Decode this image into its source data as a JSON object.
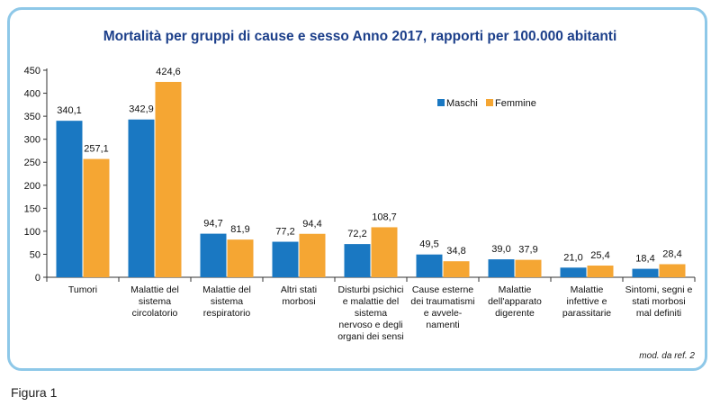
{
  "chart_data": {
    "type": "bar",
    "title": "Mortalità per gruppi di cause e sesso Anno 2017, rapporti per 100.000 abitanti",
    "xlabel": "",
    "ylabel": "",
    "ylim": [
      0,
      450
    ],
    "yticks": [
      0,
      50,
      100,
      150,
      200,
      250,
      300,
      350,
      400,
      450
    ],
    "ytick_labels": [
      "0",
      "50",
      "100",
      "150",
      "200",
      "250",
      "300",
      "350",
      "400",
      "450"
    ],
    "grid": false,
    "legend_position": "top-right",
    "categories": [
      [
        "Tumori"
      ],
      [
        "Malattie del",
        "sistema",
        "circolatorio"
      ],
      [
        "Malattie del",
        "sistema",
        "respiratorio"
      ],
      [
        "Altri stati",
        "morbosi"
      ],
      [
        "Disturbi psichici",
        "e malattie del",
        "sistema",
        "nervoso e degli",
        "organi dei sensi"
      ],
      [
        "Cause esterne",
        "dei traumatismi",
        "e avvele-",
        "namenti"
      ],
      [
        "Malattie",
        "dell'apparato",
        "digerente"
      ],
      [
        "Malattie",
        "infettive e",
        "parassitarie"
      ],
      [
        "Sintomi, segni e",
        "stati morbosi",
        "mal definiti"
      ]
    ],
    "series": [
      {
        "name": "Maschi",
        "color": "#1a78c2",
        "values": [
          340.1,
          342.9,
          94.7,
          77.2,
          72.2,
          49.5,
          39.0,
          21.0,
          18.4
        ],
        "labels": [
          "340,1",
          "342,9",
          "94,7",
          "77,2",
          "72,2",
          "49,5",
          "39,0",
          "21,0",
          "18,4"
        ]
      },
      {
        "name": "Femmine",
        "color": "#f5a633",
        "values": [
          257.1,
          424.6,
          81.9,
          94.4,
          108.7,
          34.8,
          37.9,
          25.4,
          28.4
        ],
        "labels": [
          "257,1",
          "424,6",
          "81,9",
          "94,4",
          "108,7",
          "34,8",
          "37,9",
          "25,4",
          "28,4"
        ]
      }
    ]
  },
  "source_note": "mod. da ref. 2",
  "figure_label": "Figura 1"
}
